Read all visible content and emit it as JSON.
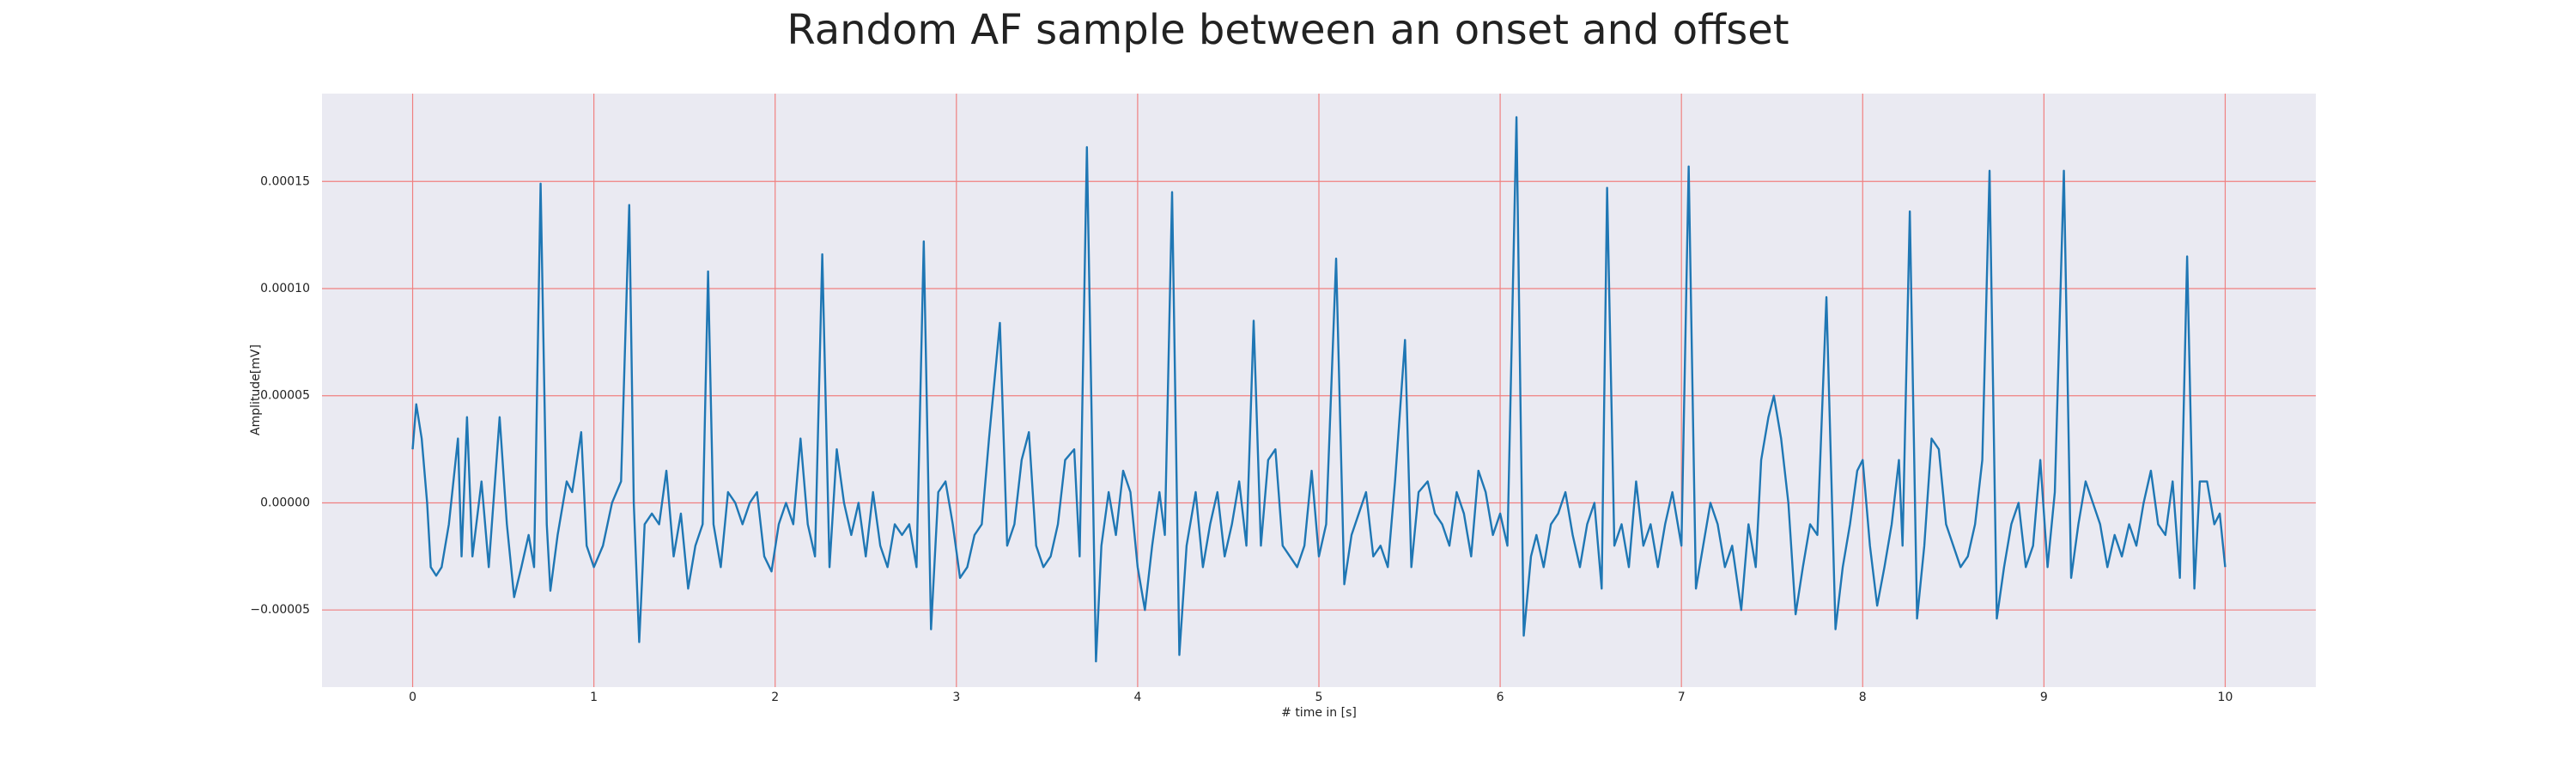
{
  "chart_data": {
    "type": "line",
    "title": "Random AF sample between an onset and offset",
    "xlabel": "# time in [s]",
    "ylabel": "Amplitude[mV]",
    "xlim": [
      -0.5,
      10.5
    ],
    "ylim": [
      -8.6e-05,
      0.000191
    ],
    "xticks": [
      0,
      1,
      2,
      3,
      4,
      5,
      6,
      7,
      8,
      9,
      10
    ],
    "yticks": [
      {
        "value": -5e-05,
        "label": "−0.00005"
      },
      {
        "value": 0,
        "label": "0.00000"
      },
      {
        "value": 5e-05,
        "label": "0.00005"
      },
      {
        "value": 0.0001,
        "label": "0.00010"
      },
      {
        "value": 0.00015,
        "label": "0.00015"
      }
    ],
    "grid": true,
    "color": "#1f77b4",
    "x": [
      0.0,
      0.02,
      0.05,
      0.08,
      0.1,
      0.13,
      0.16,
      0.2,
      0.25,
      0.27,
      0.3,
      0.33,
      0.38,
      0.42,
      0.48,
      0.52,
      0.56,
      0.6,
      0.64,
      0.67,
      0.706,
      0.74,
      0.76,
      0.8,
      0.85,
      0.88,
      0.93,
      0.96,
      1.0,
      1.05,
      1.1,
      1.15,
      1.195,
      1.22,
      1.25,
      1.28,
      1.32,
      1.36,
      1.4,
      1.44,
      1.48,
      1.52,
      1.56,
      1.6,
      1.63,
      1.66,
      1.7,
      1.74,
      1.78,
      1.82,
      1.86,
      1.9,
      1.94,
      1.98,
      2.02,
      2.06,
      2.1,
      2.14,
      2.18,
      2.22,
      2.26,
      2.3,
      2.34,
      2.38,
      2.42,
      2.46,
      2.5,
      2.54,
      2.58,
      2.62,
      2.66,
      2.7,
      2.74,
      2.78,
      2.82,
      2.86,
      2.9,
      2.94,
      2.98,
      3.02,
      3.06,
      3.1,
      3.14,
      3.18,
      3.24,
      3.28,
      3.32,
      3.36,
      3.4,
      3.44,
      3.48,
      3.52,
      3.56,
      3.6,
      3.65,
      3.68,
      3.72,
      3.77,
      3.8,
      3.84,
      3.88,
      3.92,
      3.96,
      4.0,
      4.04,
      4.08,
      4.12,
      4.15,
      4.19,
      4.23,
      4.27,
      4.32,
      4.36,
      4.4,
      4.44,
      4.48,
      4.52,
      4.56,
      4.6,
      4.64,
      4.68,
      4.72,
      4.76,
      4.8,
      4.84,
      4.88,
      4.92,
      4.96,
      5.0,
      5.04,
      5.095,
      5.14,
      5.18,
      5.22,
      5.26,
      5.3,
      5.34,
      5.38,
      5.42,
      5.475,
      5.51,
      5.55,
      5.6,
      5.64,
      5.68,
      5.72,
      5.76,
      5.8,
      5.84,
      5.88,
      5.92,
      5.96,
      6.0,
      6.04,
      6.09,
      6.13,
      6.17,
      6.2,
      6.24,
      6.28,
      6.32,
      6.36,
      6.4,
      6.44,
      6.48,
      6.52,
      6.56,
      6.59,
      6.63,
      6.67,
      6.71,
      6.75,
      6.79,
      6.83,
      6.87,
      6.91,
      6.95,
      7.0,
      7.04,
      7.08,
      7.12,
      7.16,
      7.2,
      7.24,
      7.28,
      7.33,
      7.37,
      7.41,
      7.44,
      7.48,
      7.51,
      7.55,
      7.59,
      7.63,
      7.67,
      7.71,
      7.75,
      7.8,
      7.85,
      7.89,
      7.93,
      7.97,
      8.0,
      8.04,
      8.08,
      8.12,
      8.16,
      8.2,
      8.22,
      8.26,
      8.3,
      8.34,
      8.38,
      8.42,
      8.46,
      8.5,
      8.54,
      8.58,
      8.62,
      8.66,
      8.7,
      8.74,
      8.78,
      8.82,
      8.86,
      8.9,
      8.94,
      8.98,
      9.02,
      9.06,
      9.11,
      9.15,
      9.19,
      9.23,
      9.27,
      9.31,
      9.35,
      9.39,
      9.43,
      9.47,
      9.51,
      9.55,
      9.59,
      9.63,
      9.67,
      9.71,
      9.75,
      9.79,
      9.83,
      9.86,
      9.9,
      9.94,
      9.97,
      10.0
    ],
    "values": [
      2.5e-05,
      4.6e-05,
      3e-05,
      0,
      -3e-05,
      -3.4e-05,
      -3e-05,
      -1e-05,
      3e-05,
      -2.5e-05,
      4e-05,
      -2.5e-05,
      1e-05,
      -3e-05,
      4e-05,
      -1e-05,
      -4.4e-05,
      -3e-05,
      -1.5e-05,
      -3e-05,
      0.000149,
      -1e-05,
      -4.1e-05,
      -1.5e-05,
      1e-05,
      5e-06,
      3.3e-05,
      -2e-05,
      -3e-05,
      -2e-05,
      0,
      1e-05,
      0.000139,
      0,
      -6.5e-05,
      -1e-05,
      -5e-06,
      -1e-05,
      1.5e-05,
      -2.5e-05,
      -5e-06,
      -4e-05,
      -2e-05,
      -1e-05,
      0.000108,
      -1e-05,
      -3e-05,
      5e-06,
      0,
      -1e-05,
      0,
      5e-06,
      -2.5e-05,
      -3.2e-05,
      -1e-05,
      0,
      -1e-05,
      3e-05,
      -1e-05,
      -2.5e-05,
      0.000116,
      -3e-05,
      2.5e-05,
      0,
      -1.5e-05,
      0,
      -2.5e-05,
      5e-06,
      -2e-05,
      -3e-05,
      -1e-05,
      -1.5e-05,
      -1e-05,
      -3e-05,
      0.000122,
      -5.9e-05,
      5e-06,
      1e-05,
      -1e-05,
      -3.5e-05,
      -3e-05,
      -1.5e-05,
      -1e-05,
      3e-05,
      8.4e-05,
      -2e-05,
      -1e-05,
      2e-05,
      3.3e-05,
      -2e-05,
      -3e-05,
      -2.5e-05,
      -1e-05,
      2e-05,
      2.5e-05,
      -2.5e-05,
      0.000166,
      -7.4e-05,
      -2e-05,
      5e-06,
      -1.5e-05,
      1.5e-05,
      5e-06,
      -3e-05,
      -5e-05,
      -2e-05,
      5e-06,
      -1.5e-05,
      0.000145,
      -7.1e-05,
      -2e-05,
      5e-06,
      -3e-05,
      -1e-05,
      5e-06,
      -2.5e-05,
      -1e-05,
      1e-05,
      -2e-05,
      8.5e-05,
      -2e-05,
      2e-05,
      2.5e-05,
      -2e-05,
      -2.5e-05,
      -3e-05,
      -2e-05,
      1.5e-05,
      -2.5e-05,
      -1e-05,
      0.000114,
      -3.8e-05,
      -1.5e-05,
      -5e-06,
      5e-06,
      -2.5e-05,
      -2e-05,
      -3e-05,
      1e-05,
      7.6e-05,
      -3e-05,
      5e-06,
      1e-05,
      -5e-06,
      -1e-05,
      -2e-05,
      5e-06,
      -5e-06,
      -2.5e-05,
      1.5e-05,
      5e-06,
      -1.5e-05,
      -5e-06,
      -2e-05,
      0.00018,
      -6.2e-05,
      -2.5e-05,
      -1.5e-05,
      -3e-05,
      -1e-05,
      -5e-06,
      5e-06,
      -1.5e-05,
      -3e-05,
      -1e-05,
      0,
      -4e-05,
      0.000147,
      -2e-05,
      -1e-05,
      -3e-05,
      1e-05,
      -2e-05,
      -1e-05,
      -3e-05,
      -1e-05,
      5e-06,
      -2e-05,
      0.000157,
      -4e-05,
      -2e-05,
      0,
      -1e-05,
      -3e-05,
      -2e-05,
      -5e-05,
      -1e-05,
      -3e-05,
      2e-05,
      4e-05,
      5e-05,
      3e-05,
      0,
      -5.2e-05,
      -3e-05,
      -1e-05,
      -1.5e-05,
      9.6e-05,
      -5.9e-05,
      -3e-05,
      -1e-05,
      1.5e-05,
      2e-05,
      -2e-05,
      -4.8e-05,
      -3e-05,
      -1e-05,
      2e-05,
      -2e-05,
      0.000136,
      -5.4e-05,
      -2e-05,
      3e-05,
      2.5e-05,
      -1e-05,
      -2e-05,
      -3e-05,
      -2.5e-05,
      -1e-05,
      2e-05,
      0.000155,
      -5.4e-05,
      -3e-05,
      -1e-05,
      0,
      -3e-05,
      -2e-05,
      2e-05,
      -3e-05,
      5e-06,
      0.000155,
      -3.5e-05,
      -1e-05,
      1e-05,
      0,
      -1e-05,
      -3e-05,
      -1.5e-05,
      -2.5e-05,
      -1e-05,
      -2e-05,
      0,
      1.5e-05,
      -1e-05,
      -1.5e-05,
      1e-05,
      -3.5e-05,
      0.000115,
      -4e-05,
      1e-05,
      1e-05,
      -1e-05,
      -5e-06,
      -3e-05
    ]
  }
}
